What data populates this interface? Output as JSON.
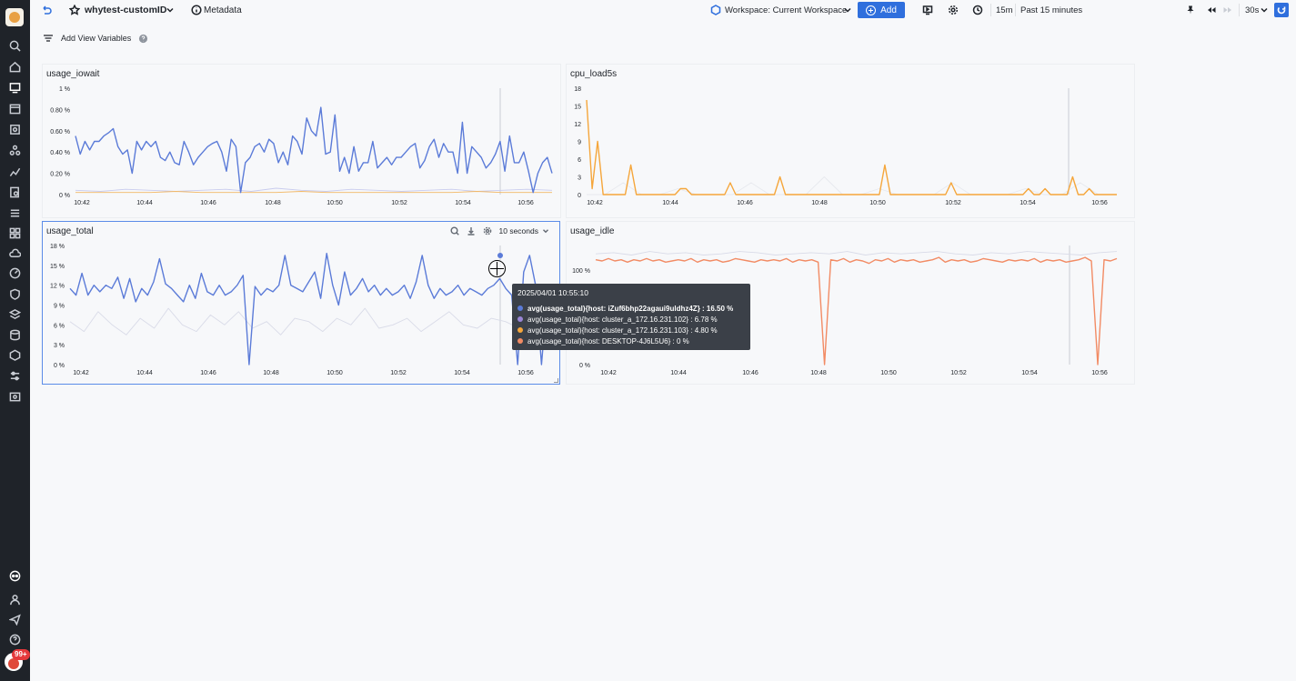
{
  "topbar": {
    "dashboard_name": "whytest-customID",
    "metadata_label": "Metadata",
    "workspace_label": "Workspace: Current Workspace",
    "add_label": "Add",
    "time_short": "15m",
    "time_label": "Past 15 minutes",
    "refresh_interval": "30s"
  },
  "variables": {
    "label": "Add View Variables"
  },
  "sidebar": {
    "badge": "99+"
  },
  "colors": {
    "series_blue": "#5b7bd8",
    "series_purple": "#9a86d6",
    "series_orange_light": "#f2b866",
    "series_orange": "#f5a63b",
    "series_red": "#f28b64",
    "accent": "#2f6fdd"
  },
  "panels": {
    "p1": {
      "title": "usage_iowait"
    },
    "p2": {
      "title": "cpu_load5s"
    },
    "p3": {
      "title": "usage_total",
      "interval": "10 seconds"
    },
    "p4": {
      "title": "usage_idle"
    }
  },
  "tooltip": {
    "time": "2025/04/01 10:55:10",
    "rows": [
      {
        "label": "avg(usage_total){host: iZuf6bhp22agaui9uldhz4Z} : 16.50 %",
        "color": "#5b7bd8",
        "bold": true
      },
      {
        "label": "avg(usage_total){host: cluster_a_172.16.231.102} : 6.78 %",
        "color": "#9a86d6",
        "bold": false
      },
      {
        "label": "avg(usage_total){host: cluster_a_172.16.231.103} : 4.80 %",
        "color": "#f5a63b",
        "bold": false
      },
      {
        "label": "avg(usage_total){host: DESKTOP-4J6L5U6} : 0 %",
        "color": "#f28b64",
        "bold": false
      }
    ]
  },
  "chart_data": [
    {
      "type": "line",
      "title": "usage_iowait",
      "x_ticks": [
        "10:42",
        "10:44",
        "10:46",
        "10:48",
        "10:50",
        "10:52",
        "10:54",
        "10:56"
      ],
      "y_ticks": [
        "0 %",
        "0.20 %",
        "0.40 %",
        "0.60 %",
        "0.80 %",
        "1 %"
      ],
      "ylim": [
        0,
        1
      ],
      "x_range": [
        "10:41:30",
        "10:56:40"
      ],
      "series": [
        {
          "color": "#5b7bd8",
          "values": [
            0.55,
            0.38,
            0.5,
            0.42,
            0.5,
            0.5,
            0.55,
            0.58,
            0.62,
            0.45,
            0.38,
            0.42,
            0.2,
            0.5,
            0.42,
            0.5,
            0.45,
            0.5,
            0.35,
            0.32,
            0.4,
            0.3,
            0.28,
            0.5,
            0.4,
            0.28,
            0.35,
            0.4,
            0.45,
            0.48,
            0.5,
            0.4,
            0.22,
            0.52,
            0.45,
            0.02,
            0.3,
            0.35,
            0.45,
            0.48,
            0.4,
            0.52,
            0.48,
            0.3,
            0.4,
            0.28,
            0.55,
            0.5,
            0.38,
            0.72,
            0.6,
            0.55,
            0.82,
            0.38,
            0.4,
            0.75,
            0.22,
            0.35,
            0.2,
            0.45,
            0.22,
            0.3,
            0.3,
            0.5,
            0.25,
            0.3,
            0.35,
            0.28,
            0.35,
            0.35,
            0.4,
            0.45,
            0.48,
            0.25,
            0.32,
            0.45,
            0.52,
            0.35,
            0.48,
            0.4,
            0.4,
            0.2,
            0.68,
            0.2,
            0.45,
            0.4,
            0.35,
            0.25,
            0.3,
            0.38,
            0.5,
            0.22,
            0.55,
            0.3,
            0.3,
            0.4,
            0.22,
            0.02,
            0.2,
            0.3,
            0.35,
            0.2
          ]
        },
        {
          "color": "#f2b866",
          "values": [
            0.02,
            0.02,
            0.02,
            0.02,
            0.03,
            0.02,
            0.02,
            0.02,
            0.02,
            0.03,
            0.02,
            0.02,
            0.02,
            0.02,
            0.02,
            0.02,
            0.03,
            0.02,
            0.02,
            0.02
          ]
        },
        {
          "color": "#c9ccee",
          "values": [
            0.04,
            0.03,
            0.05,
            0.04,
            0.03,
            0.04,
            0.05,
            0.03,
            0.06,
            0.04,
            0.03,
            0.05,
            0.04,
            0.03,
            0.04,
            0.05,
            0.03,
            0.04,
            0.05,
            0.04
          ]
        }
      ]
    },
    {
      "type": "line",
      "title": "cpu_load5s",
      "x_ticks": [
        "10:42",
        "10:44",
        "10:46",
        "10:48",
        "10:50",
        "10:52",
        "10:54",
        "10:56"
      ],
      "y_ticks": [
        "0",
        "3",
        "6",
        "9",
        "12",
        "15",
        "18"
      ],
      "ylim": [
        0,
        18
      ],
      "x_range": [
        "10:41:30",
        "10:56:40"
      ],
      "series": [
        {
          "color": "#f5a63b",
          "values": [
            16,
            1,
            9,
            0,
            0,
            0,
            0,
            0,
            5,
            0,
            0,
            0,
            0,
            0,
            0,
            0,
            0,
            1,
            1,
            0,
            0,
            0,
            0,
            0,
            0,
            0,
            2,
            0,
            0,
            0,
            0,
            0,
            0,
            0,
            0,
            3,
            0,
            0,
            0,
            0,
            0,
            0,
            0,
            0,
            0,
            0,
            0,
            0,
            0,
            0,
            0,
            0,
            0,
            0,
            5,
            0,
            0,
            0,
            0,
            0,
            0,
            0,
            0,
            0,
            0,
            0,
            2,
            0,
            0,
            0,
            0,
            0,
            0,
            0,
            0,
            0,
            0,
            0,
            0,
            0,
            1,
            0,
            0,
            1,
            0,
            0,
            0,
            0,
            3,
            0,
            0,
            1,
            0,
            0,
            0,
            0,
            0
          ]
        },
        {
          "color": "#e7e9ee",
          "values": [
            0,
            0,
            2,
            0,
            0,
            1,
            0,
            0,
            0,
            2,
            0,
            0,
            0,
            3,
            0,
            0,
            1,
            0,
            0,
            0,
            2,
            0,
            0,
            0,
            1,
            0,
            0,
            2,
            0,
            0
          ]
        }
      ]
    },
    {
      "type": "line",
      "title": "usage_total",
      "x_ticks": [
        "10:42",
        "10:44",
        "10:46",
        "10:48",
        "10:50",
        "10:52",
        "10:54",
        "10:56"
      ],
      "y_ticks": [
        "0 %",
        "3 %",
        "6 %",
        "9 %",
        "12 %",
        "15 %",
        "18 %"
      ],
      "ylim": [
        0,
        18
      ],
      "x_range": [
        "10:41:50",
        "10:56:40"
      ],
      "series": [
        {
          "color": "#5b7bd8",
          "values": [
            11.5,
            10.5,
            13.8,
            10.5,
            12,
            11,
            12,
            11.5,
            13.2,
            10,
            13,
            9.5,
            11.5,
            10.5,
            12.5,
            16,
            12.2,
            11.5,
            10.5,
            9.5,
            12,
            10,
            13.8,
            11,
            10.5,
            12,
            10.5,
            11,
            12,
            13.5,
            0,
            11.8,
            10.5,
            11.5,
            11,
            12,
            16.5,
            12,
            11.5,
            11,
            12.5,
            14,
            10,
            16.8,
            12,
            9,
            14,
            10.5,
            11.5,
            13,
            11,
            12,
            10.5,
            11.5,
            10.5,
            11,
            12,
            10,
            12.5,
            16.5,
            12,
            10,
            11.5,
            10.5,
            11,
            12,
            10.5,
            11.5,
            11,
            10.5,
            11.5,
            12,
            13,
            11.5,
            10.5,
            0,
            14,
            16.5,
            12,
            0,
            11
          ]
        },
        {
          "color": "#d9dbe8",
          "values": [
            6.5,
            5,
            8,
            6,
            4.5,
            7,
            5.5,
            8.5,
            6,
            5,
            7.5,
            6,
            8,
            5.5,
            6.5,
            4.5,
            7,
            6.5,
            5,
            7,
            6,
            8.5,
            5.5,
            6,
            7,
            5,
            6.5,
            8,
            6,
            5.5,
            7,
            6.5,
            5.5,
            7,
            6
          ]
        }
      ]
    },
    {
      "type": "line",
      "title": "usage_idle",
      "x_ticks": [
        "10:42",
        "10:44",
        "10:46",
        "10:48",
        "10:50",
        "10:52",
        "10:54",
        "10:56"
      ],
      "y_ticks": [
        "0 %",
        "80 %",
        "100 %"
      ],
      "ylim": [
        0,
        100
      ],
      "x_range": [
        "10:41:50",
        "10:56:40"
      ],
      "series": [
        {
          "color": "#f28b64",
          "values": [
            88,
            87,
            89,
            87,
            88,
            86,
            88,
            87,
            89,
            87,
            88,
            86,
            87,
            88,
            87,
            89,
            86,
            88,
            87,
            88,
            86,
            87,
            89,
            88,
            87,
            86,
            88,
            87,
            88,
            87,
            89,
            86,
            88,
            87,
            88,
            86,
            0,
            88,
            87,
            89,
            86,
            88,
            87,
            85,
            88,
            87,
            89,
            86,
            88,
            87,
            88,
            86,
            87,
            88,
            90,
            86,
            88,
            87,
            88,
            86,
            87,
            89,
            88,
            87,
            86,
            88,
            87,
            88,
            87,
            89,
            86,
            88,
            87,
            88,
            86,
            87,
            88,
            90,
            87,
            0,
            88,
            87,
            89
          ]
        },
        {
          "color": "#d9dbe8",
          "values": [
            93,
            94,
            92,
            95,
            93,
            94,
            92,
            93,
            95,
            94,
            92,
            93,
            94,
            93,
            95,
            92,
            94,
            93,
            94,
            95,
            93,
            92,
            94,
            93,
            95,
            94,
            93,
            92,
            94,
            95
          ]
        }
      ]
    }
  ]
}
